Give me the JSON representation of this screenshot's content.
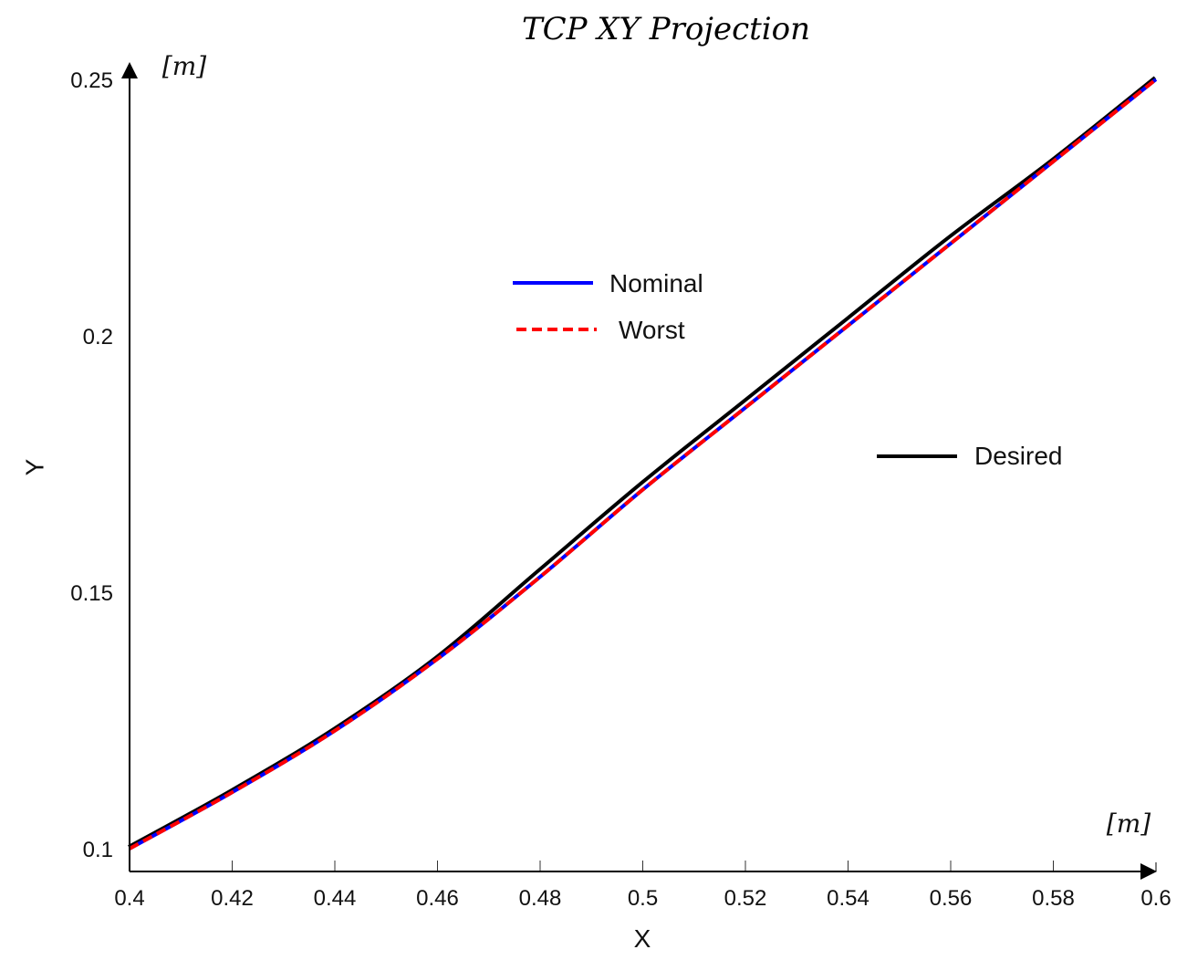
{
  "chart_data": {
    "type": "line",
    "title": "TCP XY Projection",
    "xlabel": "X",
    "ylabel": "Y",
    "x_unit": "[m]",
    "y_unit": "[m]",
    "xlim": [
      0.4,
      0.6
    ],
    "ylim": [
      0.1,
      0.25
    ],
    "x_ticks": [
      "0.4",
      "0.42",
      "0.44",
      "0.46",
      "0.48",
      "0.5",
      "0.52",
      "0.54",
      "0.56",
      "0.58",
      "0.6"
    ],
    "y_ticks": [
      "0.1",
      "0.15",
      "0.2",
      "0.25"
    ],
    "grid": false,
    "x": [
      0.4,
      0.42,
      0.44,
      0.46,
      0.48,
      0.5,
      0.52,
      0.54,
      0.56,
      0.58,
      0.6
    ],
    "series": [
      {
        "name": "Desired",
        "color": "#000000",
        "style": "solid",
        "values": [
          0.1,
          0.111,
          0.123,
          0.137,
          0.154,
          0.171,
          0.187,
          0.203,
          0.219,
          0.234,
          0.25
        ]
      },
      {
        "name": "Nominal",
        "color": "#0000ff",
        "style": "solid",
        "values": [
          0.1,
          0.111,
          0.123,
          0.137,
          0.153,
          0.17,
          0.186,
          0.202,
          0.218,
          0.234,
          0.25
        ]
      },
      {
        "name": "Worst",
        "color": "#ff0000",
        "style": "dashed",
        "values": [
          0.1,
          0.111,
          0.123,
          0.137,
          0.153,
          0.17,
          0.186,
          0.202,
          0.218,
          0.234,
          0.25
        ]
      }
    ],
    "legend": [
      {
        "label": "Nominal",
        "color": "#0000ff",
        "style": "solid"
      },
      {
        "label": "Worst",
        "color": "#ff0000",
        "style": "dashed"
      },
      {
        "label": "Desired",
        "color": "#000000",
        "style": "solid"
      }
    ],
    "legend_position": "inside, split (Nominal/Worst upper-center, Desired right-middle)"
  }
}
